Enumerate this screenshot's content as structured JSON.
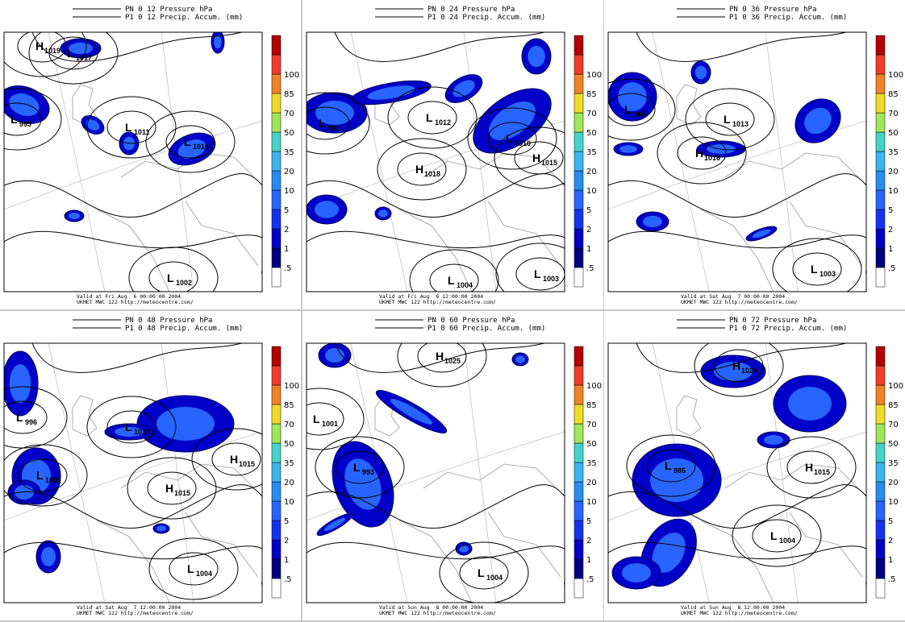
{
  "colorbar": {
    "labels": [
      ".5",
      "1",
      "2",
      "5",
      "10",
      "20",
      "35",
      "50",
      "70",
      "85",
      "100"
    ],
    "colors": [
      "#ffffff",
      "#000080",
      "#0000c8",
      "#1432f0",
      "#2864ff",
      "#288cf0",
      "#3cb4f0",
      "#46d2c8",
      "#a0e65a",
      "#f0dc28",
      "#f08228",
      "#f03c28",
      "#b40000"
    ]
  },
  "panels": [
    {
      "header": [
        "PN 0 12 Pressure hPa",
        "P1 0 12 Precip. Accum. (mm)"
      ],
      "footer": [
        "Valid at Fri Aug  6 00:00:00 2004",
        "UKMET MWC 122 http://meteocentre.com/"
      ],
      "centers": [
        {
          "kind": "H",
          "value": "1019"
        },
        {
          "kind": "L",
          "value": "1017"
        },
        {
          "kind": "L",
          "value": "993"
        },
        {
          "kind": "L",
          "value": "1011"
        },
        {
          "kind": "L",
          "value": "1010"
        },
        {
          "kind": "L",
          "value": "1002"
        }
      ]
    },
    {
      "header": [
        "PN 0 24 Pressure hPa",
        "P1 0 24 Precip. Accum. (mm)"
      ],
      "footer": [
        "Valid at Fri Aug  6 12:00:00 2004",
        "UKMET MWC 122 http://meteocentre.com/"
      ],
      "centers": [
        {
          "kind": "L",
          "value": "992"
        },
        {
          "kind": "L",
          "value": "1012"
        },
        {
          "kind": "L",
          "value": "1010"
        },
        {
          "kind": "H",
          "value": "1018"
        },
        {
          "kind": "H",
          "value": "1015"
        },
        {
          "kind": "L",
          "value": "1004"
        },
        {
          "kind": "L",
          "value": "1003"
        }
      ]
    },
    {
      "header": [
        "PN 0 36 Pressure hPa",
        "P1 0 36 Precip. Accum. (mm)"
      ],
      "footer": [
        "Valid at Sat Aug  7 00:00:00 2004",
        "UKMET MWC 122 http://meteocentre.com/"
      ],
      "centers": [
        {
          "kind": "L",
          "value": "995"
        },
        {
          "kind": "L",
          "value": "1013"
        },
        {
          "kind": "H",
          "value": "1016"
        },
        {
          "kind": "L",
          "value": "1003"
        }
      ]
    },
    {
      "header": [
        "PN 0 48 Pressure hPa",
        "P1 0 48 Precip. Accum. (mm)"
      ],
      "footer": [
        "Valid at Sat Aug  7 12:00:00 2004",
        "UKMET MWC 122 http://meteocentre.com/"
      ],
      "centers": [
        {
          "kind": "L",
          "value": "996"
        },
        {
          "kind": "L",
          "value": "1013"
        },
        {
          "kind": "L",
          "value": "1001"
        },
        {
          "kind": "H",
          "value": "1015"
        },
        {
          "kind": "H",
          "value": "1015"
        },
        {
          "kind": "L",
          "value": "1004"
        }
      ]
    },
    {
      "header": [
        "PN 0 60 Pressure hPa",
        "P1 0 60 Precip. Accum. (mm)"
      ],
      "footer": [
        "Valid at Sun Aug  8 00:00:00 2004",
        "UKMET MWC 122 http://meteocentre.com/"
      ],
      "centers": [
        {
          "kind": "H",
          "value": "1025"
        },
        {
          "kind": "L",
          "value": "1001"
        },
        {
          "kind": "L",
          "value": "993"
        },
        {
          "kind": "L",
          "value": "1004"
        }
      ]
    },
    {
      "header": [
        "PN 0 72 Pressure hPa",
        "P1 0 72 Precip. Accum. (mm)"
      ],
      "footer": [
        "Valid at Sun Aug  8 12:00:00 2004",
        "UKMET MWC 122 http://meteocentre.com/"
      ],
      "centers": [
        {
          "kind": "H",
          "value": "1024"
        },
        {
          "kind": "L",
          "value": "986"
        },
        {
          "kind": "H",
          "value": "1015"
        },
        {
          "kind": "L",
          "value": "1004"
        }
      ]
    }
  ]
}
